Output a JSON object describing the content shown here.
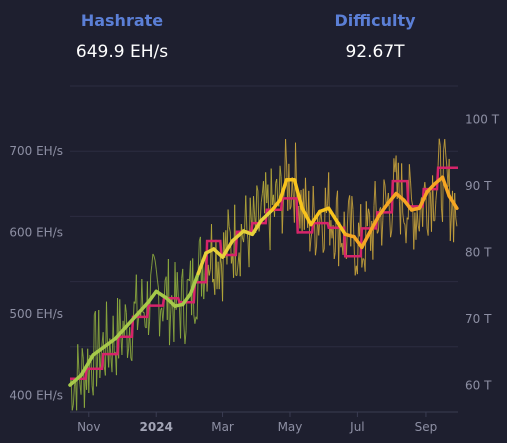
{
  "stats": {
    "hashrate": {
      "title": "Hashrate",
      "value": "649.9 EH/s"
    },
    "difficulty": {
      "title": "Difficulty",
      "value": "92.67T"
    }
  },
  "colors": {
    "background": "#1e1f2f",
    "title": "#5b7fd6",
    "grid": "#2c2d40",
    "difficulty": "#d6246a",
    "hashrate_daily": "#c9a43c",
    "hashrate_avg": "#f5a623"
  },
  "chart_data": {
    "type": "line",
    "title": "",
    "x_range": [
      "2023-10-15",
      "2024-09-30"
    ],
    "x_ticks": [
      {
        "label": "Nov",
        "date": "2023-11-01",
        "bold": false
      },
      {
        "label": "2024",
        "date": "2024-01-01",
        "bold": true
      },
      {
        "label": "Mar",
        "date": "2024-03-01",
        "bold": false
      },
      {
        "label": "May",
        "date": "2024-05-01",
        "bold": false
      },
      {
        "label": "Jul",
        "date": "2024-07-01",
        "bold": false
      },
      {
        "label": "Sep",
        "date": "2024-09-01",
        "bold": false
      }
    ],
    "y_left": {
      "unit": "EH/s",
      "range": [
        380,
        780
      ],
      "ticks": [
        {
          "label": "400 EH/s",
          "value": 400
        },
        {
          "label": "500 EH/s",
          "value": 500
        },
        {
          "label": "600 EH/s",
          "value": 600
        },
        {
          "label": "700 EH/s",
          "value": 700
        }
      ]
    },
    "y_right": {
      "unit": "T",
      "range": [
        56,
        105
      ],
      "ticks": [
        {
          "label": "60 T",
          "value": 60
        },
        {
          "label": "70 T",
          "value": 70
        },
        {
          "label": "80 T",
          "value": 80
        },
        {
          "label": "90 T",
          "value": 90
        },
        {
          "label": "100 T",
          "value": 100
        }
      ]
    },
    "series": [
      {
        "key": "difficulty",
        "axis": "right",
        "style": "step",
        "points": [
          [
            "2023-10-15",
            61.0
          ],
          [
            "2023-10-29",
            61.0
          ],
          [
            "2023-10-30",
            62.5
          ],
          [
            "2023-11-13",
            62.5
          ],
          [
            "2023-11-14",
            64.7
          ],
          [
            "2023-11-27",
            64.7
          ],
          [
            "2023-11-28",
            67.3
          ],
          [
            "2023-12-10",
            67.3
          ],
          [
            "2023-12-11",
            70.3
          ],
          [
            "2023-12-24",
            70.3
          ],
          [
            "2023-12-25",
            72.0
          ],
          [
            "2024-01-07",
            72.0
          ],
          [
            "2024-01-08",
            73.1
          ],
          [
            "2024-01-21",
            73.1
          ],
          [
            "2024-01-22",
            72.5
          ],
          [
            "2024-02-04",
            72.5
          ],
          [
            "2024-02-05",
            75.5
          ],
          [
            "2024-02-15",
            75.5
          ],
          [
            "2024-02-16",
            81.7
          ],
          [
            "2024-02-28",
            81.7
          ],
          [
            "2024-02-29",
            79.6
          ],
          [
            "2024-03-13",
            79.6
          ],
          [
            "2024-03-14",
            83.1
          ],
          [
            "2024-03-27",
            83.1
          ],
          [
            "2024-03-28",
            84.4
          ],
          [
            "2024-04-09",
            84.4
          ],
          [
            "2024-04-10",
            86.4
          ],
          [
            "2024-04-23",
            86.4
          ],
          [
            "2024-04-24",
            88.1
          ],
          [
            "2024-05-07",
            88.1
          ],
          [
            "2024-05-08",
            83.0
          ],
          [
            "2024-05-21",
            83.0
          ],
          [
            "2024-05-22",
            84.4
          ],
          [
            "2024-06-04",
            84.4
          ],
          [
            "2024-06-05",
            83.7
          ],
          [
            "2024-06-19",
            83.7
          ],
          [
            "2024-06-20",
            79.4
          ],
          [
            "2024-07-04",
            79.4
          ],
          [
            "2024-07-05",
            83.6
          ],
          [
            "2024-07-18",
            83.6
          ],
          [
            "2024-07-19",
            86.0
          ],
          [
            "2024-08-01",
            86.0
          ],
          [
            "2024-08-02",
            90.7
          ],
          [
            "2024-08-15",
            90.7
          ],
          [
            "2024-08-16",
            86.9
          ],
          [
            "2024-08-29",
            86.9
          ],
          [
            "2024-08-30",
            89.5
          ],
          [
            "2024-09-11",
            89.5
          ],
          [
            "2024-09-12",
            92.7
          ],
          [
            "2024-09-30",
            92.7
          ]
        ]
      },
      {
        "key": "hashrate_daily",
        "axis": "left",
        "style": "daily",
        "start_date": "2023-10-15",
        "end_date": "2024-09-29",
        "noise": {
          "amplitude": 55,
          "seed": 7
        }
      },
      {
        "key": "hashrate_avg",
        "axis": "left",
        "style": "smooth",
        "points": [
          [
            "2023-10-15",
            413
          ],
          [
            "2023-10-25",
            425
          ],
          [
            "2023-11-05",
            450
          ],
          [
            "2023-11-15",
            460
          ],
          [
            "2023-11-25",
            470
          ],
          [
            "2023-12-05",
            485
          ],
          [
            "2023-12-15",
            500
          ],
          [
            "2023-12-25",
            515
          ],
          [
            "2024-01-01",
            528
          ],
          [
            "2024-01-10",
            520
          ],
          [
            "2024-01-18",
            510
          ],
          [
            "2024-01-25",
            512
          ],
          [
            "2024-02-01",
            525
          ],
          [
            "2024-02-08",
            550
          ],
          [
            "2024-02-15",
            575
          ],
          [
            "2024-02-22",
            580
          ],
          [
            "2024-03-01",
            570
          ],
          [
            "2024-03-10",
            590
          ],
          [
            "2024-03-20",
            602
          ],
          [
            "2024-03-28",
            598
          ],
          [
            "2024-04-05",
            615
          ],
          [
            "2024-04-15",
            628
          ],
          [
            "2024-04-22",
            640
          ],
          [
            "2024-04-28",
            665
          ],
          [
            "2024-05-05",
            665
          ],
          [
            "2024-05-12",
            630
          ],
          [
            "2024-05-20",
            610
          ],
          [
            "2024-05-28",
            626
          ],
          [
            "2024-06-05",
            630
          ],
          [
            "2024-06-12",
            615
          ],
          [
            "2024-06-20",
            598
          ],
          [
            "2024-06-28",
            595
          ],
          [
            "2024-07-05",
            582
          ],
          [
            "2024-07-12",
            600
          ],
          [
            "2024-07-20",
            620
          ],
          [
            "2024-07-28",
            635
          ],
          [
            "2024-08-05",
            648
          ],
          [
            "2024-08-12",
            640
          ],
          [
            "2024-08-19",
            628
          ],
          [
            "2024-08-26",
            630
          ],
          [
            "2024-09-02",
            650
          ],
          [
            "2024-09-09",
            660
          ],
          [
            "2024-09-16",
            668
          ],
          [
            "2024-09-22",
            645
          ],
          [
            "2024-09-29",
            630
          ]
        ]
      }
    ]
  }
}
